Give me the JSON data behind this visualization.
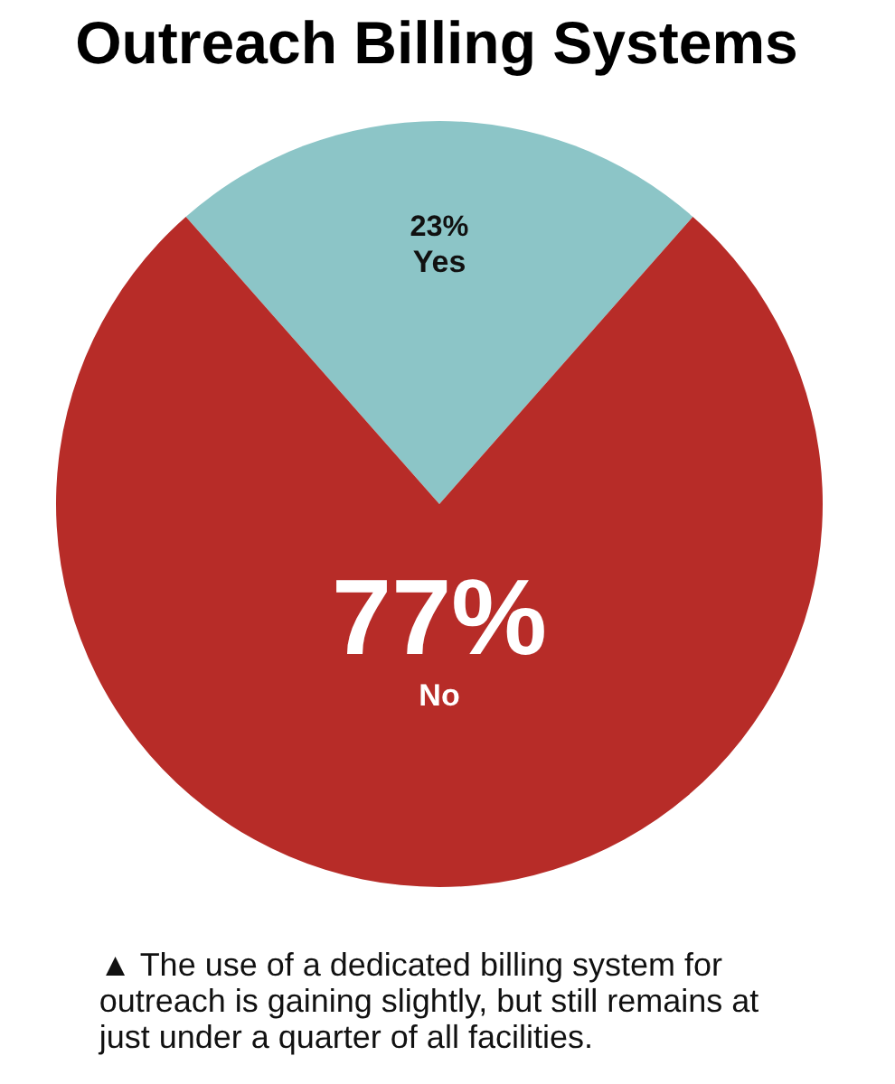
{
  "chart_data": {
    "type": "pie",
    "title": "Outreach Billing Systems",
    "categories": [
      "Yes",
      "No"
    ],
    "values": [
      23,
      77
    ],
    "colors": [
      "#8cc5c7",
      "#b72c28"
    ],
    "value_labels": [
      "23%",
      "77%"
    ],
    "annotations": [
      "▲ The use of a dedicated billing system for outreach is gaining slightly, but still remains at just under a quarter of all facilities."
    ]
  }
}
